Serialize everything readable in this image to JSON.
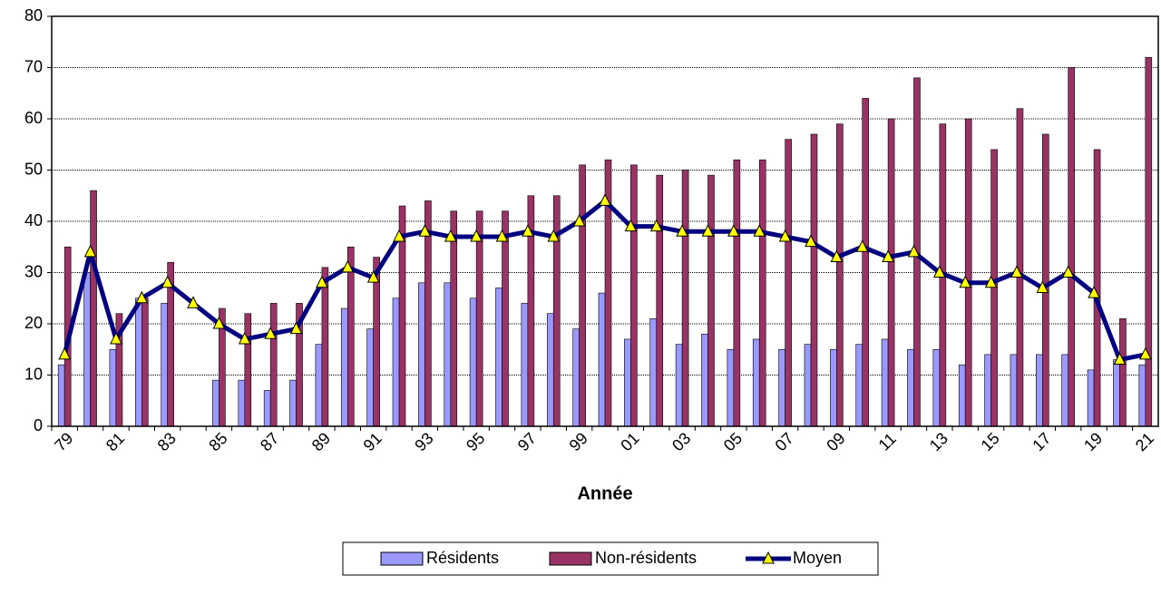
{
  "chart_data": {
    "type": "bar",
    "x_label": "Année",
    "categories": [
      "79",
      null,
      "81",
      null,
      "83",
      null,
      "85",
      null,
      "87",
      null,
      "89",
      null,
      "91",
      null,
      "93",
      null,
      "95",
      null,
      "97",
      null,
      "99",
      null,
      "01",
      null,
      "03",
      null,
      "05",
      null,
      "07",
      null,
      "09",
      null,
      "11",
      null,
      "13",
      null,
      "15",
      null,
      "17",
      null,
      "19",
      null,
      "21"
    ],
    "series": [
      {
        "name": "Résidents",
        "type": "bar",
        "color": "#9999ff",
        "values": [
          12,
          30,
          15,
          25,
          24,
          null,
          9,
          9,
          7,
          9,
          16,
          23,
          19,
          25,
          28,
          28,
          25,
          27,
          24,
          22,
          19,
          26,
          17,
          21,
          16,
          18,
          15,
          17,
          15,
          16,
          15,
          16,
          17,
          15,
          15,
          12,
          14,
          14,
          14,
          14,
          11,
          13,
          12
        ]
      },
      {
        "name": "Non-résidents",
        "type": "bar",
        "color": "#993366",
        "values": [
          35,
          46,
          22,
          25,
          32,
          null,
          23,
          22,
          24,
          24,
          31,
          35,
          33,
          43,
          44,
          42,
          42,
          42,
          45,
          45,
          51,
          52,
          51,
          49,
          50,
          49,
          52,
          52,
          56,
          57,
          59,
          64,
          60,
          68,
          59,
          60,
          54,
          62,
          57,
          70,
          54,
          21,
          72
        ]
      },
      {
        "name": "Moyen",
        "type": "line",
        "color": "#000080",
        "marker_color": "#ffff00",
        "values": [
          14,
          34,
          17,
          25,
          28,
          24,
          20,
          17,
          18,
          19,
          28,
          31,
          29,
          37,
          38,
          37,
          37,
          37,
          38,
          37,
          40,
          44,
          39,
          39,
          38,
          38,
          38,
          38,
          37,
          36,
          33,
          35,
          33,
          34,
          30,
          28,
          28,
          30,
          27,
          30,
          26,
          13,
          14
        ]
      }
    ],
    "ylim": [
      0,
      80
    ],
    "yticks": [
      0,
      10,
      20,
      30,
      40,
      50,
      60,
      70,
      80
    ],
    "grid": true,
    "legend": "bottom"
  }
}
